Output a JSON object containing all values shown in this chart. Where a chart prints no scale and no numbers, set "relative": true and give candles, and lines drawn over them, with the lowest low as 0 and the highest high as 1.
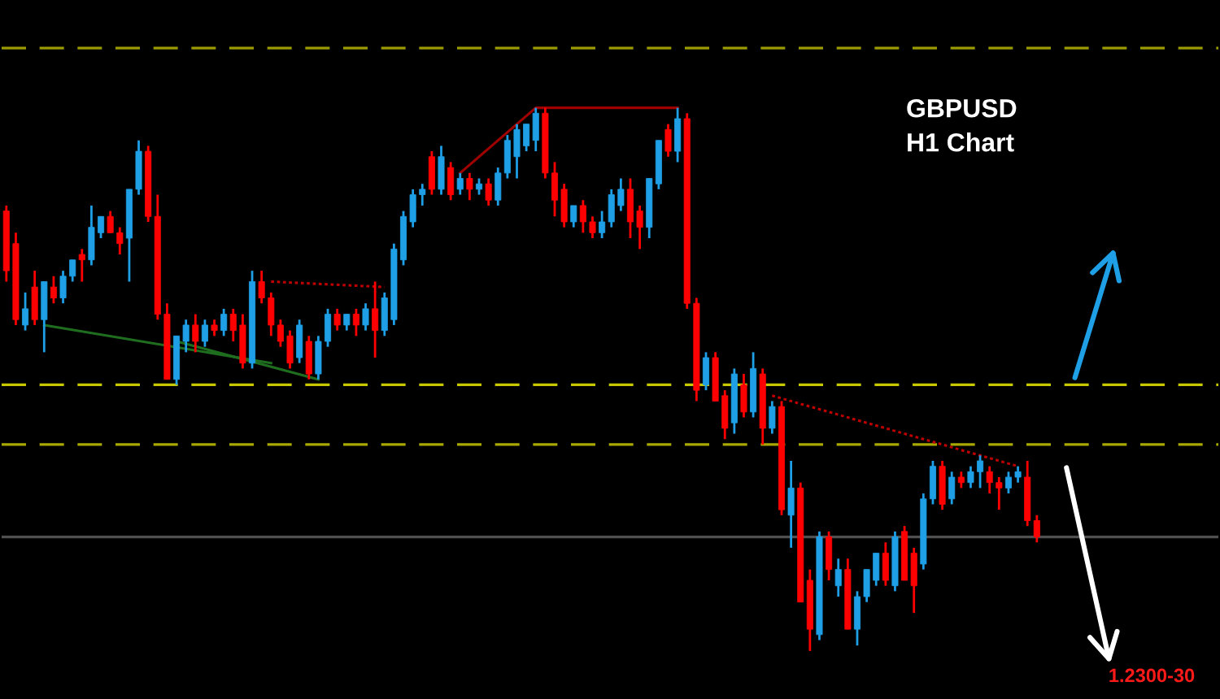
{
  "chart_data": {
    "type": "candlestick",
    "relative": true,
    "title": "GBPUSD",
    "subtitle": "H1 Chart",
    "annotations": [
      "1.2300-30"
    ],
    "categories": [
      null,
      null,
      null,
      null,
      null,
      null,
      null,
      null,
      null,
      null,
      null,
      null,
      null,
      null,
      null,
      null,
      null,
      null,
      null,
      null,
      null,
      null,
      null,
      null,
      null,
      null,
      null,
      null,
      null,
      null,
      null,
      null,
      null,
      null,
      null,
      null,
      null,
      null,
      null,
      null,
      null,
      null,
      null,
      null,
      null,
      null,
      null,
      null,
      null,
      null,
      null,
      null,
      null,
      null,
      null,
      null,
      null,
      null,
      null,
      null,
      null,
      null,
      null,
      null,
      null,
      null,
      null,
      null,
      null,
      null,
      null,
      null,
      null,
      null,
      null,
      null,
      null,
      null,
      null,
      null,
      null,
      null,
      null,
      null,
      null,
      null,
      null,
      null,
      null,
      null,
      null,
      null,
      null,
      null,
      null,
      null,
      null,
      null,
      null,
      null,
      null,
      null,
      null,
      null,
      null,
      null,
      null,
      null,
      null,
      null
    ],
    "ohlc": [
      [
        0.81,
        0.82,
        0.68,
        0.7
      ],
      [
        0.75,
        0.77,
        0.6,
        0.61
      ],
      [
        0.6,
        0.66,
        0.59,
        0.63
      ],
      [
        0.67,
        0.7,
        0.6,
        0.61
      ],
      [
        0.61,
        0.68,
        0.55,
        0.68
      ],
      [
        0.67,
        0.69,
        0.64,
        0.65
      ],
      [
        0.65,
        0.7,
        0.64,
        0.69
      ],
      [
        0.69,
        0.72,
        0.68,
        0.72
      ],
      [
        0.73,
        0.74,
        0.68,
        0.72
      ],
      [
        0.72,
        0.82,
        0.71,
        0.78
      ],
      [
        0.77,
        0.8,
        0.76,
        0.8
      ],
      [
        0.8,
        0.81,
        0.77,
        0.77
      ],
      [
        0.77,
        0.78,
        0.73,
        0.75
      ],
      [
        0.76,
        0.85,
        0.68,
        0.85
      ],
      [
        0.85,
        0.94,
        0.84,
        0.92
      ],
      [
        0.92,
        0.93,
        0.79,
        0.8
      ],
      [
        0.8,
        0.84,
        0.61,
        0.62
      ],
      [
        0.62,
        0.64,
        0.5,
        0.5
      ],
      [
        0.5,
        0.58,
        0.49,
        0.58
      ],
      [
        0.57,
        0.61,
        0.55,
        0.6
      ],
      [
        0.6,
        0.62,
        0.55,
        0.57
      ],
      [
        0.57,
        0.61,
        0.56,
        0.6
      ],
      [
        0.6,
        0.61,
        0.58,
        0.59
      ],
      [
        0.59,
        0.63,
        0.58,
        0.62
      ],
      [
        0.62,
        0.63,
        0.57,
        0.59
      ],
      [
        0.6,
        0.62,
        0.52,
        0.53
      ],
      [
        0.53,
        0.7,
        0.52,
        0.68
      ],
      [
        0.68,
        0.7,
        0.64,
        0.65
      ],
      [
        0.65,
        0.66,
        0.58,
        0.6
      ],
      [
        0.6,
        0.61,
        0.56,
        0.57
      ],
      [
        0.58,
        0.59,
        0.52,
        0.53
      ],
      [
        0.54,
        0.61,
        0.53,
        0.6
      ],
      [
        0.57,
        0.58,
        0.5,
        0.51
      ],
      [
        0.51,
        0.58,
        0.5,
        0.57
      ],
      [
        0.57,
        0.63,
        0.56,
        0.62
      ],
      [
        0.62,
        0.63,
        0.59,
        0.6
      ],
      [
        0.6,
        0.62,
        0.59,
        0.62
      ],
      [
        0.62,
        0.63,
        0.58,
        0.6
      ],
      [
        0.6,
        0.64,
        0.59,
        0.63
      ],
      [
        0.63,
        0.68,
        0.54,
        0.59
      ],
      [
        0.59,
        0.66,
        0.58,
        0.65
      ],
      [
        0.61,
        0.75,
        0.6,
        0.74
      ],
      [
        0.72,
        0.81,
        0.71,
        0.8
      ],
      [
        0.79,
        0.85,
        0.78,
        0.84
      ],
      [
        0.84,
        0.86,
        0.82,
        0.85
      ],
      [
        0.91,
        0.92,
        0.84,
        0.85
      ],
      [
        0.85,
        0.93,
        0.84,
        0.91
      ],
      [
        0.89,
        0.9,
        0.83,
        0.84
      ],
      [
        0.85,
        0.88,
        0.84,
        0.87
      ],
      [
        0.87,
        0.88,
        0.83,
        0.85
      ],
      [
        0.85,
        0.87,
        0.84,
        0.86
      ],
      [
        0.86,
        0.87,
        0.82,
        0.83
      ],
      [
        0.83,
        0.89,
        0.82,
        0.88
      ],
      [
        0.88,
        0.95,
        0.87,
        0.94
      ],
      [
        0.91,
        0.97,
        0.87,
        0.96
      ],
      [
        0.93,
        0.97,
        0.92,
        0.97
      ],
      [
        0.94,
        1.0,
        0.92,
        0.99
      ],
      [
        0.99,
        1.0,
        0.87,
        0.88
      ],
      [
        0.88,
        0.9,
        0.8,
        0.83
      ],
      [
        0.85,
        0.86,
        0.78,
        0.79
      ],
      [
        0.79,
        0.82,
        0.78,
        0.82
      ],
      [
        0.82,
        0.83,
        0.77,
        0.79
      ],
      [
        0.79,
        0.8,
        0.76,
        0.77
      ],
      [
        0.77,
        0.81,
        0.76,
        0.79
      ],
      [
        0.79,
        0.85,
        0.78,
        0.84
      ],
      [
        0.82,
        0.87,
        0.81,
        0.85
      ],
      [
        0.85,
        0.87,
        0.76,
        0.79
      ],
      [
        0.81,
        0.82,
        0.74,
        0.78
      ],
      [
        0.78,
        0.87,
        0.76,
        0.87
      ],
      [
        0.86,
        0.94,
        0.85,
        0.94
      ],
      [
        0.96,
        0.97,
        0.91,
        0.92
      ],
      [
        0.92,
        1.0,
        0.9,
        0.98
      ],
      [
        0.98,
        0.99,
        0.63,
        0.64
      ],
      [
        0.64,
        0.65,
        0.46,
        0.48
      ],
      [
        0.49,
        0.55,
        0.48,
        0.54
      ],
      [
        0.54,
        0.55,
        0.46,
        0.46
      ],
      [
        0.47,
        0.48,
        0.39,
        0.41
      ],
      [
        0.42,
        0.52,
        0.4,
        0.51
      ],
      [
        0.49,
        0.51,
        0.43,
        0.44
      ],
      [
        0.44,
        0.55,
        0.43,
        0.52
      ],
      [
        0.51,
        0.52,
        0.38,
        0.41
      ],
      [
        0.41,
        0.46,
        0.4,
        0.45
      ],
      [
        0.45,
        0.46,
        0.25,
        0.26
      ],
      [
        0.25,
        0.35,
        0.19,
        0.3
      ],
      [
        0.3,
        0.31,
        0.09,
        0.09
      ],
      [
        0.13,
        0.15,
        0.0,
        0.04
      ],
      [
        0.03,
        0.22,
        0.02,
        0.21
      ],
      [
        0.21,
        0.22,
        0.13,
        0.15
      ],
      [
        0.12,
        0.17,
        0.1,
        0.15
      ],
      [
        0.15,
        0.17,
        0.04,
        0.04
      ],
      [
        0.04,
        0.11,
        0.01,
        0.1
      ],
      [
        0.1,
        0.15,
        0.09,
        0.15
      ],
      [
        0.13,
        0.18,
        0.12,
        0.18
      ],
      [
        0.18,
        0.2,
        0.12,
        0.13
      ],
      [
        0.12,
        0.22,
        0.11,
        0.21
      ],
      [
        0.22,
        0.23,
        0.13,
        0.13
      ],
      [
        0.18,
        0.19,
        0.07,
        0.12
      ],
      [
        0.16,
        0.29,
        0.15,
        0.28
      ],
      [
        0.28,
        0.35,
        0.27,
        0.34
      ],
      [
        0.34,
        0.35,
        0.26,
        0.27
      ],
      [
        0.28,
        0.33,
        0.27,
        0.32
      ],
      [
        0.32,
        0.33,
        0.3,
        0.31
      ],
      [
        0.31,
        0.34,
        0.3,
        0.33
      ],
      [
        0.33,
        0.36,
        0.3,
        0.35
      ],
      [
        0.33,
        0.34,
        0.29,
        0.31
      ],
      [
        0.31,
        0.32,
        0.26,
        0.3
      ],
      [
        0.3,
        0.33,
        0.29,
        0.32
      ],
      [
        0.32,
        0.34,
        0.31,
        0.33
      ],
      [
        0.32,
        0.35,
        0.23,
        0.24
      ],
      [
        0.24,
        0.25,
        0.2,
        0.21
      ]
    ],
    "colors": [
      "#ff0000",
      "#ff0000",
      "#1e9fe6",
      "#ff0000",
      "#1e9fe6",
      "#ff0000",
      "#1e9fe6",
      "#1e9fe6",
      "#ff0000",
      "#1e9fe6",
      "#1e9fe6",
      "#ff0000",
      "#ff0000",
      "#1e9fe6",
      "#1e9fe6",
      "#ff0000",
      "#ff0000",
      "#ff0000",
      "#1e9fe6",
      "#1e9fe6",
      "#ff0000",
      "#1e9fe6",
      "#ff0000",
      "#1e9fe6",
      "#ff0000",
      "#ff0000",
      "#1e9fe6",
      "#ff0000",
      "#ff0000",
      "#ff0000",
      "#ff0000",
      "#1e9fe6",
      "#ff0000",
      "#1e9fe6",
      "#1e9fe6",
      "#ff0000",
      "#1e9fe6",
      "#ff0000",
      "#1e9fe6",
      "#ff0000",
      "#1e9fe6",
      "#1e9fe6",
      "#1e9fe6",
      "#1e9fe6",
      "#1e9fe6",
      "#ff0000",
      "#1e9fe6",
      "#ff0000",
      "#1e9fe6",
      "#ff0000",
      "#1e9fe6",
      "#ff0000",
      "#1e9fe6",
      "#1e9fe6",
      "#1e9fe6",
      "#1e9fe6",
      "#1e9fe6",
      "#ff0000",
      "#ff0000",
      "#ff0000",
      "#1e9fe6",
      "#ff0000",
      "#ff0000",
      "#1e9fe6",
      "#1e9fe6",
      "#1e9fe6",
      "#ff0000",
      "#ff0000",
      "#1e9fe6",
      "#1e9fe6",
      "#ff0000",
      "#1e9fe6",
      "#ff0000",
      "#ff0000",
      "#1e9fe6",
      "#ff0000",
      "#ff0000",
      "#1e9fe6",
      "#ff0000",
      "#1e9fe6",
      "#ff0000",
      "#1e9fe6",
      "#ff0000",
      "#1e9fe6",
      "#ff0000",
      "#ff0000",
      "#1e9fe6",
      "#ff0000",
      "#1e9fe6",
      "#ff0000",
      "#1e9fe6",
      "#1e9fe6",
      "#1e9fe6",
      "#ff0000",
      "#1e9fe6",
      "#ff0000",
      "#ff0000",
      "#1e9fe6",
      "#1e9fe6",
      "#ff0000",
      "#1e9fe6",
      "#ff0000",
      "#1e9fe6",
      "#1e9fe6",
      "#ff0000",
      "#ff0000",
      "#1e9fe6",
      "#1e9fe6",
      "#ff0000",
      "#ff0000"
    ],
    "series": [
      {
        "type": "line",
        "color": "#a00000",
        "line_style": "solid",
        "values": [
          null,
          null,
          null,
          null,
          null,
          null,
          null,
          null,
          null,
          null,
          null,
          null,
          null,
          null,
          null,
          null,
          null,
          null,
          null,
          null,
          null,
          null,
          null,
          null,
          null,
          null,
          null,
          null,
          null,
          null,
          null,
          null,
          null,
          null,
          null,
          null,
          null,
          null,
          null,
          null,
          null,
          null,
          null,
          null,
          null,
          null,
          null,
          null,
          0.88,
          null,
          null,
          null,
          null,
          null,
          null,
          null,
          1.0,
          null,
          null,
          null,
          null,
          null,
          null,
          null,
          null,
          null,
          null,
          null,
          null,
          null,
          null,
          1.0,
          null,
          null,
          null,
          null,
          null,
          null,
          null,
          null,
          null,
          null,
          null,
          null,
          null,
          null,
          null,
          null,
          null,
          null,
          null,
          null,
          null,
          null,
          null,
          null,
          null,
          null,
          null,
          null,
          null,
          null,
          null,
          null,
          null,
          null,
          null,
          null,
          null,
          null
        ]
      },
      {
        "type": "line",
        "color": "#c00000",
        "line_style": "dotted",
        "values": [
          null,
          null,
          null,
          null,
          null,
          null,
          null,
          null,
          null,
          null,
          null,
          null,
          null,
          null,
          null,
          null,
          null,
          null,
          null,
          null,
          null,
          null,
          null,
          null,
          null,
          null,
          null,
          null,
          0.68,
          null,
          null,
          null,
          null,
          null,
          null,
          null,
          null,
          null,
          null,
          null,
          0.67,
          null,
          null,
          null,
          null,
          null,
          null,
          null,
          null,
          null,
          null,
          null,
          null,
          null,
          null,
          null,
          null,
          null,
          null,
          null,
          null,
          null,
          null,
          null,
          null,
          null,
          null,
          null,
          null,
          null,
          null,
          null,
          null,
          null,
          null,
          null,
          null,
          null,
          null,
          null,
          null,
          null,
          null,
          null,
          null,
          null,
          null,
          null,
          null,
          null,
          null,
          null,
          null,
          null,
          null,
          null,
          null,
          null,
          null,
          null,
          null,
          null,
          null,
          null,
          null,
          null,
          null,
          null,
          null,
          null
        ]
      },
      {
        "type": "line",
        "color": "#c00000",
        "line_style": "dotted",
        "values": [
          null,
          null,
          null,
          null,
          null,
          null,
          null,
          null,
          null,
          null,
          null,
          null,
          null,
          null,
          null,
          null,
          null,
          null,
          null,
          null,
          null,
          null,
          null,
          null,
          null,
          null,
          null,
          null,
          null,
          null,
          null,
          null,
          null,
          null,
          null,
          null,
          null,
          null,
          null,
          null,
          null,
          null,
          null,
          null,
          null,
          null,
          null,
          null,
          null,
          null,
          null,
          null,
          null,
          null,
          null,
          null,
          null,
          null,
          null,
          null,
          null,
          null,
          null,
          null,
          null,
          null,
          null,
          null,
          null,
          null,
          null,
          null,
          null,
          null,
          null,
          null,
          null,
          null,
          null,
          null,
          null,
          0.47,
          null,
          null,
          null,
          null,
          null,
          null,
          null,
          null,
          null,
          null,
          null,
          null,
          null,
          null,
          null,
          null,
          null,
          null,
          null,
          null,
          null,
          null,
          null,
          null,
          null,
          0.34,
          null,
          null
        ]
      },
      {
        "type": "line",
        "color": "#1f6e1f",
        "line_style": "solid",
        "values": [
          null,
          null,
          null,
          null,
          0.6,
          null,
          null,
          null,
          null,
          null,
          null,
          null,
          null,
          null,
          null,
          null,
          null,
          null,
          null,
          null,
          null,
          null,
          null,
          null,
          null,
          null,
          null,
          null,
          0.53,
          null,
          null,
          null,
          null,
          null,
          null,
          null,
          null,
          null,
          null,
          null,
          null,
          null,
          null,
          null,
          null,
          null,
          null,
          null,
          null,
          null,
          null,
          null,
          null,
          null,
          null,
          null,
          null,
          null,
          null,
          null,
          null,
          null,
          null,
          null,
          null,
          null,
          null,
          null,
          null,
          null,
          null,
          null,
          null,
          null,
          null,
          null,
          null,
          null,
          null,
          null,
          null,
          null,
          null,
          null,
          null,
          null,
          null,
          null,
          null,
          null,
          null,
          null,
          null,
          null,
          null,
          null,
          null,
          null,
          null,
          null,
          null,
          null,
          null,
          null,
          null,
          null,
          null,
          null,
          null,
          null
        ]
      },
      {
        "type": "line",
        "color": "#1f6e1f",
        "line_style": "solid",
        "values": [
          null,
          null,
          null,
          null,
          null,
          null,
          null,
          null,
          null,
          null,
          null,
          null,
          null,
          null,
          null,
          null,
          null,
          null,
          0.57,
          null,
          null,
          null,
          null,
          null,
          null,
          null,
          null,
          null,
          null,
          null,
          null,
          null,
          null,
          0.5,
          null,
          null,
          null,
          null,
          null,
          null,
          null,
          null,
          null,
          null,
          null,
          null,
          null,
          null,
          null,
          null,
          null,
          null,
          null,
          null,
          null,
          null,
          null,
          null,
          null,
          null,
          null,
          null,
          null,
          null,
          null,
          null,
          null,
          null,
          null,
          null,
          null,
          null,
          null,
          null,
          null,
          null,
          null,
          null,
          null,
          null,
          null,
          null,
          null,
          null,
          null,
          null,
          null,
          null,
          null,
          null,
          null,
          null,
          null,
          null,
          null,
          null,
          null,
          null,
          null,
          null,
          null,
          null,
          null,
          null,
          null,
          null,
          null,
          null,
          null,
          null
        ]
      }
    ],
    "ref_lines": [
      {
        "axis": "y",
        "value": 1.11,
        "color": "#9a9a00",
        "line_style": "dashed"
      },
      {
        "axis": "y",
        "value": 0.49,
        "color": "#c8c800",
        "line_style": "dashed"
      },
      {
        "axis": "y",
        "value": 0.38,
        "color": "#a8a800",
        "line_style": "dashed"
      },
      {
        "axis": "y",
        "value": 0.21,
        "color": "#505050",
        "line_style": "solid"
      }
    ]
  }
}
